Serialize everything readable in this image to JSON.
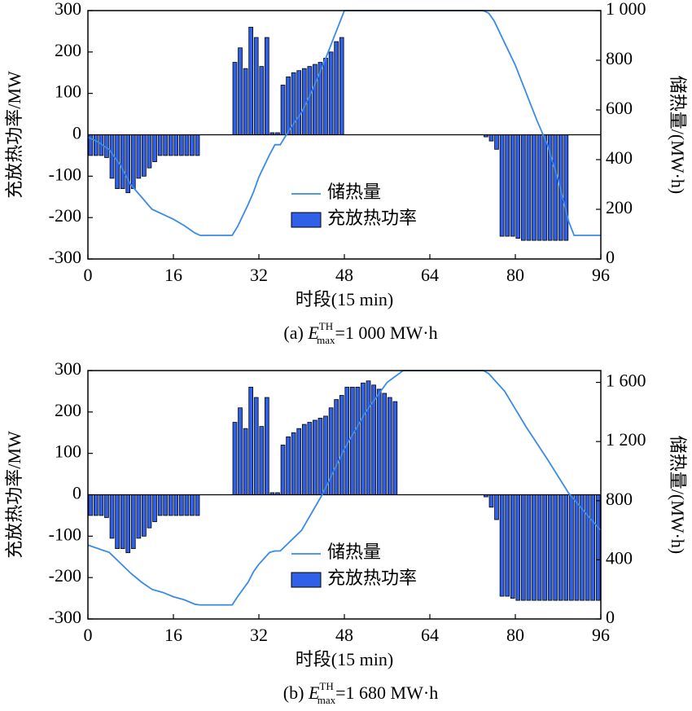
{
  "chart_data": [
    {
      "type": "bar_line",
      "caption": {
        "prefix": "(a) ",
        "symbol": "E",
        "sub": "max",
        "sup": "TH",
        "suffix": "=1 000 MW·h"
      },
      "xlabel": "时段(15 min)",
      "ylabel": "充放热功率/MW",
      "y2label": "储热量/(MW·h)",
      "xlim": [
        0,
        96
      ],
      "xticks": [
        0,
        16,
        32,
        48,
        64,
        80,
        96
      ],
      "ylim": [
        -300,
        300
      ],
      "yticks": [
        -300,
        -200,
        -100,
        0,
        100,
        200,
        300
      ],
      "y2lim": [
        0,
        1000
      ],
      "y2ticks": [
        0,
        200,
        400,
        600,
        800,
        {
          "value": 1000,
          "label": "1 000"
        }
      ],
      "legend": "center",
      "series": [
        {
          "name": "储热量",
          "color": "#3a8ae8",
          "axis": "y2",
          "x": [
            0,
            2,
            4,
            6,
            8,
            10,
            12,
            14,
            16,
            18,
            20,
            21,
            27,
            28,
            30,
            31,
            32,
            34,
            35,
            36,
            38,
            40,
            42,
            44,
            46,
            48,
            74,
            75,
            76,
            80,
            84,
            86,
            88,
            90,
            91,
            96
          ],
          "values": [
            490,
            470,
            440,
            380,
            300,
            250,
            200,
            180,
            160,
            135,
            105,
            95,
            95,
            130,
            220,
            270,
            330,
            420,
            460,
            460,
            530,
            590,
            680,
            780,
            890,
            1000,
            1000,
            990,
            960,
            780,
            560,
            460,
            320,
            150,
            95,
            95
          ]
        },
        {
          "name": "充放热功率",
          "color": "#3060e8",
          "values": [
            -50,
            -50,
            -50,
            -55,
            -105,
            -130,
            -130,
            -140,
            -130,
            -105,
            -100,
            -80,
            -65,
            -50,
            -50,
            -50,
            -50,
            -50,
            -50,
            -50,
            -50,
            0,
            0,
            0,
            0,
            0,
            0,
            175,
            210,
            160,
            260,
            235,
            165,
            235,
            5,
            5,
            120,
            140,
            150,
            155,
            160,
            165,
            170,
            175,
            185,
            200,
            225,
            235,
            0,
            0,
            0,
            0,
            0,
            0,
            0,
            0,
            0,
            0,
            0,
            0,
            0,
            0,
            0,
            0,
            0,
            0,
            0,
            0,
            0,
            0,
            0,
            0,
            0,
            0,
            -5,
            -15,
            -35,
            -245,
            -245,
            -245,
            -250,
            -255,
            -255,
            -255,
            -255,
            -255,
            -255,
            -255,
            -255,
            -255,
            0,
            0,
            0,
            0,
            0,
            0
          ]
        }
      ]
    },
    {
      "type": "bar_line",
      "caption": {
        "prefix": "(b) ",
        "symbol": "E",
        "sub": "max",
        "sup": "TH",
        "suffix": "=1 680 MW·h"
      },
      "xlabel": "时段(15 min)",
      "ylabel": "充放热功率/MW",
      "y2label": "储热量/(MW·h)",
      "xlim": [
        0,
        96
      ],
      "xticks": [
        0,
        16,
        32,
        48,
        64,
        80,
        96
      ],
      "ylim": [
        -300,
        300
      ],
      "yticks": [
        -300,
        -200,
        -100,
        0,
        100,
        200,
        300
      ],
      "y2lim": [
        0,
        1680
      ],
      "y2ticks": [
        0,
        400,
        800,
        {
          "value": 1200,
          "label": "1 200"
        },
        {
          "value": 1600,
          "label": "1 600"
        }
      ],
      "legend": "center",
      "series": [
        {
          "name": "储热量",
          "color": "#3a8ae8",
          "axis": "y2",
          "x": [
            0,
            4,
            6,
            8,
            10,
            12,
            14,
            16,
            18,
            20,
            21,
            27,
            28,
            30,
            31,
            32,
            34,
            35,
            36,
            40,
            44,
            48,
            52,
            56,
            59,
            74,
            75,
            78,
            82,
            86,
            90,
            94,
            96
          ],
          "values": [
            500,
            450,
            380,
            310,
            250,
            200,
            180,
            150,
            130,
            100,
            95,
            95,
            150,
            250,
            320,
            370,
            450,
            460,
            460,
            600,
            850,
            1150,
            1400,
            1600,
            1680,
            1680,
            1660,
            1540,
            1300,
            1080,
            850,
            680,
            600
          ]
        },
        {
          "name": "充放热功率",
          "color": "#3060e8",
          "values": [
            -50,
            -50,
            -50,
            -55,
            -105,
            -130,
            -130,
            -140,
            -130,
            -105,
            -100,
            -80,
            -65,
            -50,
            -50,
            -50,
            -50,
            -50,
            -50,
            -50,
            -50,
            0,
            0,
            0,
            0,
            0,
            0,
            175,
            210,
            160,
            260,
            235,
            165,
            235,
            5,
            5,
            120,
            140,
            150,
            160,
            170,
            175,
            180,
            185,
            190,
            210,
            230,
            240,
            260,
            260,
            260,
            270,
            275,
            265,
            255,
            245,
            235,
            225,
            0,
            0,
            0,
            0,
            0,
            0,
            0,
            0,
            0,
            0,
            0,
            0,
            0,
            0,
            0,
            0,
            -5,
            -30,
            -60,
            -245,
            -245,
            -250,
            -255,
            -255,
            -255,
            -255,
            -255,
            -255,
            -255,
            -255,
            -255,
            -255,
            -255,
            -255,
            -255,
            -255,
            -255,
            -255
          ]
        }
      ]
    }
  ]
}
